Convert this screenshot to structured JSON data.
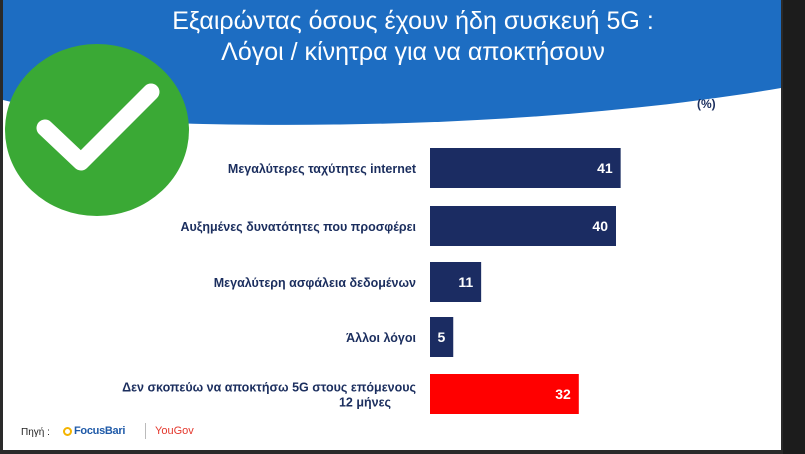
{
  "title": {
    "line1": "Εξαιρώντας όσους έχουν ήδη συσκευή 5G :",
    "line2": "Λόγοι / κίνητρα για να αποκτήσουν"
  },
  "unit_label": "(%)",
  "source": {
    "label": "Πηγή :",
    "logo1": "FocusBari",
    "logo2": "YouGov"
  },
  "overlay_icon": "check-mark-icon",
  "colors": {
    "banner": "#1d6dc2",
    "bar": "#1b2c62",
    "bar_highlight": "#ff0000",
    "check_circle": "#3aa935"
  },
  "chart_data": {
    "type": "bar",
    "orientation": "horizontal",
    "categories": [
      [
        "Μεγαλύτερες ταχύτητες internet"
      ],
      [
        "Αυξημένες δυνατότητες που προσφέρει"
      ],
      [
        "Μεγαλύτερη ασφάλεια δεδομένων"
      ],
      [
        "Άλλοι λόγοι"
      ],
      [
        "Δεν σκοπεύω να αποκτήσω 5G στους επόμενους",
        "12 μήνες"
      ]
    ],
    "values": [
      41,
      40,
      11,
      5,
      32
    ],
    "highlight_index": 4,
    "xlim": [
      0,
      100
    ]
  }
}
